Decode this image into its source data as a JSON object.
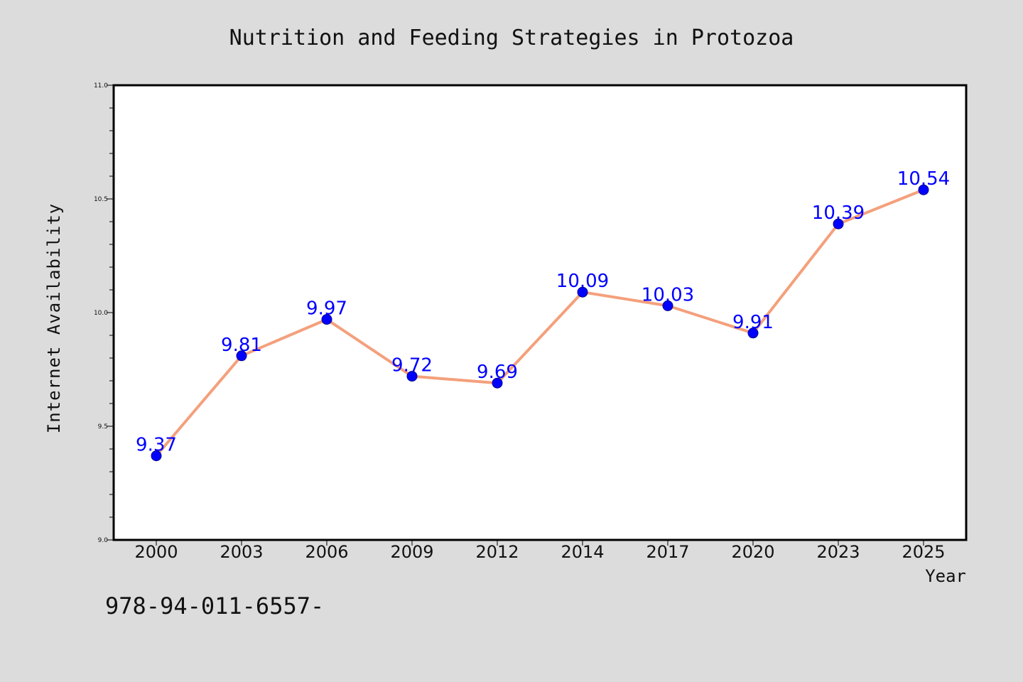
{
  "chart_data": {
    "type": "line",
    "title": "Nutrition and Feeding Strategies in Protozoa",
    "xlabel": "Year",
    "ylabel": "Internet Availability",
    "categories": [
      "2000",
      "2003",
      "2006",
      "2009",
      "2012",
      "2014",
      "2017",
      "2020",
      "2023",
      "2025"
    ],
    "series": [
      {
        "values": [
          9.37,
          9.81,
          9.97,
          9.72,
          9.69,
          10.09,
          10.03,
          9.91,
          10.39,
          10.54
        ],
        "labels": [
          "9.37",
          "9.81",
          "9.97",
          "9.72",
          "9.69",
          "10.09",
          "10.03",
          "9.91",
          "10.39",
          "10.54"
        ],
        "line_color": "#f4a07c",
        "marker_color": "#0000ff"
      }
    ],
    "ylim": [
      9.0,
      11.0
    ],
    "yticks": [
      "9.0",
      "9.5",
      "10.0",
      "10.5",
      "11.0"
    ],
    "grid": false,
    "legend": "none"
  },
  "footer_text": "978-94-011-6557-",
  "colors": {
    "background": "#dcdcdc",
    "plot_area": "#ffffff",
    "line": "#f4a07c",
    "marker": "#0000ff",
    "data_label": "#0000ff"
  }
}
